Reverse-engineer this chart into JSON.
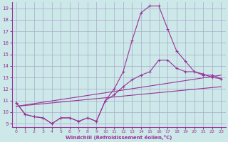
{
  "xlabel": "Windchill (Refroidissement éolien,°C)",
  "bg_color": "#cce8e8",
  "grid_color": "#aaaacc",
  "line_color": "#993399",
  "xlim": [
    -0.5,
    23.5
  ],
  "ylim": [
    8.7,
    19.5
  ],
  "xticks": [
    0,
    1,
    2,
    3,
    4,
    5,
    6,
    7,
    8,
    9,
    10,
    11,
    12,
    13,
    14,
    15,
    16,
    17,
    18,
    19,
    20,
    21,
    22,
    23
  ],
  "yticks": [
    9,
    10,
    11,
    12,
    13,
    14,
    15,
    16,
    17,
    18,
    19
  ],
  "line1_x": [
    0,
    1,
    2,
    3,
    4,
    5,
    6,
    7,
    8,
    9,
    10,
    11,
    12,
    13,
    14,
    15,
    16,
    17,
    18,
    19,
    20,
    21,
    22,
    23
  ],
  "line1_y": [
    10.8,
    9.8,
    9.6,
    9.5,
    9.0,
    9.5,
    9.5,
    9.2,
    9.5,
    9.2,
    11.0,
    12.0,
    13.5,
    16.2,
    18.6,
    19.2,
    19.2,
    17.2,
    15.3,
    14.4,
    13.5,
    13.2,
    13.2,
    12.9
  ],
  "line2_x": [
    0,
    1,
    2,
    3,
    4,
    5,
    6,
    7,
    8,
    9,
    10,
    11,
    12,
    13,
    14,
    15,
    16,
    17,
    18,
    19,
    20,
    21,
    22,
    23
  ],
  "line2_y": [
    10.8,
    9.8,
    9.6,
    9.5,
    9.0,
    9.5,
    9.5,
    9.2,
    9.5,
    9.2,
    11.0,
    11.5,
    12.2,
    12.8,
    13.2,
    13.5,
    14.5,
    14.5,
    13.8,
    13.5,
    13.5,
    13.3,
    13.0,
    12.9
  ],
  "line3_x": [
    0,
    23
  ],
  "line3_y": [
    10.5,
    12.2
  ],
  "line4_x": [
    0,
    23
  ],
  "line4_y": [
    10.5,
    13.2
  ]
}
